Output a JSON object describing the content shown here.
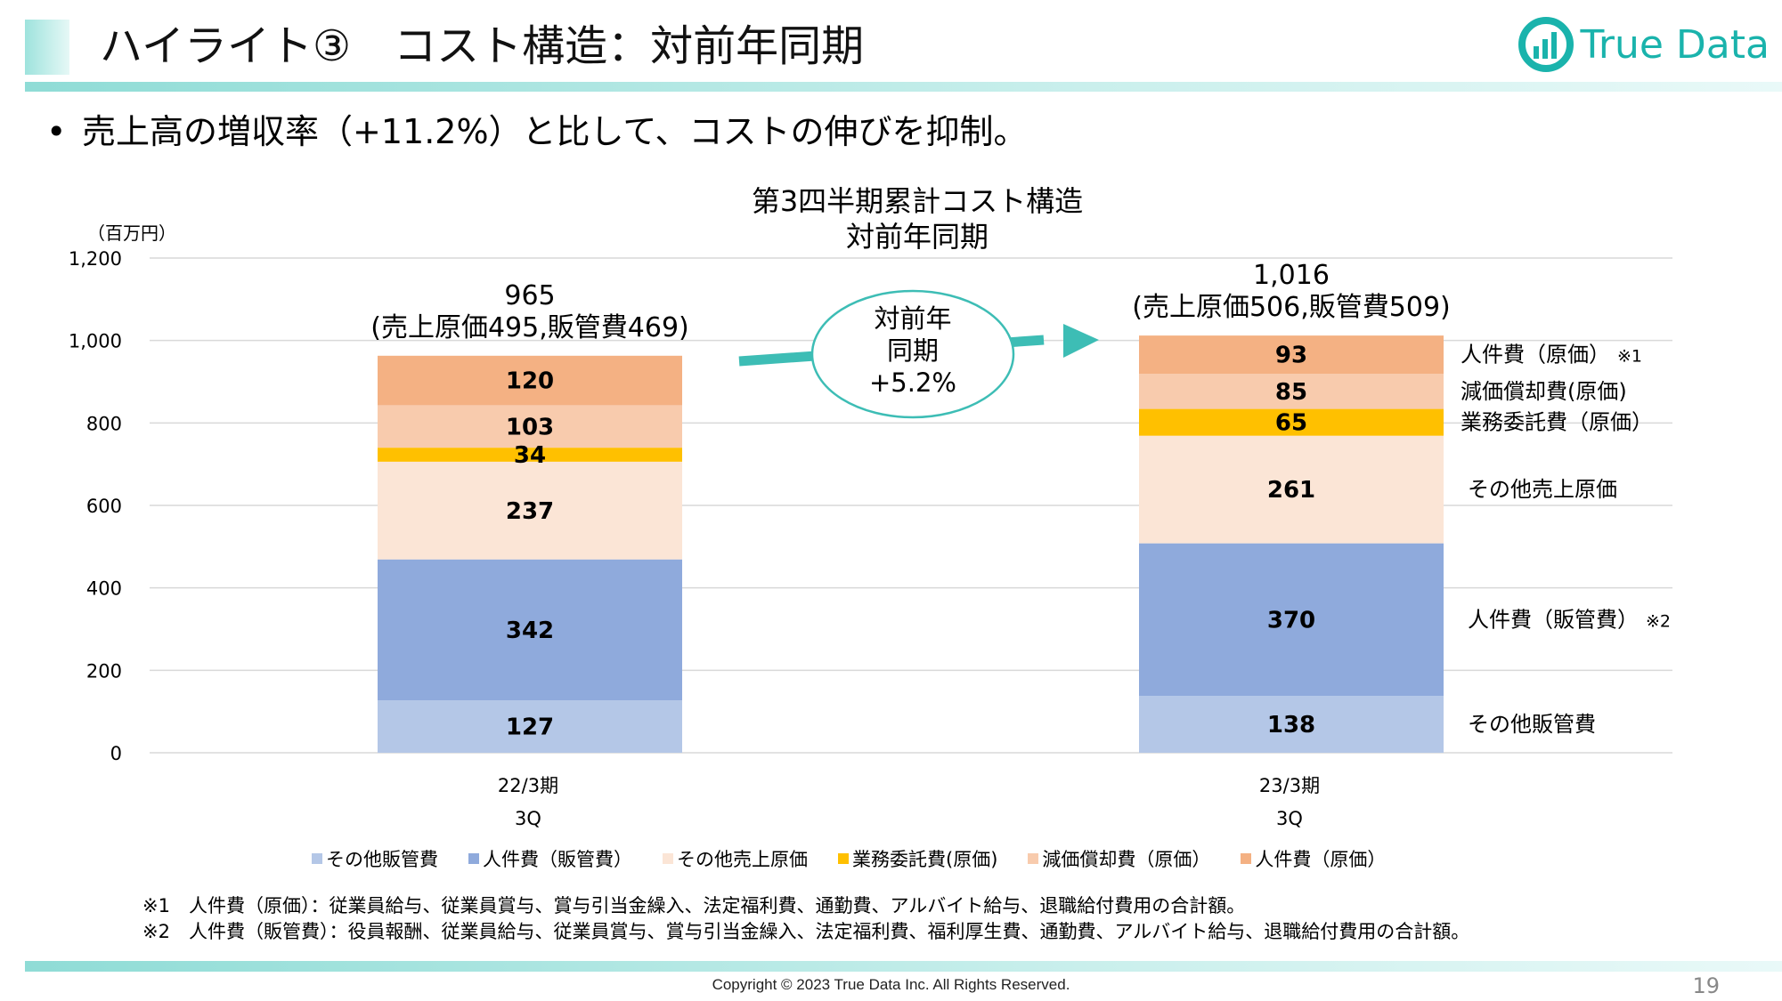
{
  "header": {
    "title": "ハイライト③　コスト構造：対前年同期",
    "logo_text": "True Data"
  },
  "bullet": "売上高の増収率（+11.2%）と比して、コストの伸びを抑制。",
  "chart_title_line1": "第3四半期累計コスト構造",
  "chart_title_line2": "対前年同期",
  "comparison_bubble": [
    "対前年",
    "同期",
    "+5.2%"
  ],
  "chart_data": {
    "type": "bar",
    "stacked": true,
    "unit": "（百万円）",
    "ylim": [
      0,
      1200
    ],
    "yticks": [
      0,
      200,
      400,
      600,
      800,
      1000,
      1200
    ],
    "ytick_labels": [
      "0",
      "200",
      "400",
      "600",
      "800",
      "1,000",
      "1,200"
    ],
    "grid": true,
    "legend_position": "bottom",
    "categories": [
      {
        "line1": "22/3期",
        "line2": "3Q"
      },
      {
        "line1": "23/3期",
        "line2": "3Q"
      }
    ],
    "totals": [
      {
        "value": "965",
        "breakdown": "(売上原価495,販管費469)"
      },
      {
        "value": "1,016",
        "breakdown": "(売上原価506,販管費509)"
      }
    ],
    "series": [
      {
        "name": "その他販管費",
        "values": [
          127,
          138
        ],
        "color": "#b4c7e7",
        "side_label": "その他販管費",
        "note": ""
      },
      {
        "name": "人件費（販管費）",
        "values": [
          342,
          370
        ],
        "color": "#8faadc",
        "side_label": "人件費（販管費）",
        "note": "※2"
      },
      {
        "name": "その他売上原価",
        "values": [
          237,
          261
        ],
        "color": "#fbe5d6",
        "side_label": "その他売上原価",
        "note": ""
      },
      {
        "name": "業務委託費(原価)",
        "values": [
          34,
          65
        ],
        "color": "#ffc000",
        "side_label": "業務委託費（原価）",
        "note": ""
      },
      {
        "name": "減価償却費（原価）",
        "values": [
          103,
          85
        ],
        "color": "#f8cbad",
        "side_label": "減価償却費(原価)",
        "note": ""
      },
      {
        "name": "人件費（原価）",
        "values": [
          120,
          93
        ],
        "color": "#f4b183",
        "side_label": "人件費（原価）",
        "note": "※1"
      }
    ]
  },
  "notes": [
    "※1　人件費（原価）：従業員給与、従業員賞与、賞与引当金繰入、法定福利費、通勤費、アルバイト給与、退職給付費用の合計額。",
    "※2　人件費（販管費）：役員報酬、従業員給与、従業員賞与、賞与引当金繰入、法定福利費、福利厚生費、通勤費、アルバイト給与、退職給付費用の合計額。"
  ],
  "footer": {
    "copyright": "Copyright © 2023 True Data Inc. All Rights Reserved.",
    "page_number": "19"
  },
  "colors": {
    "accent": "#1ab3ac",
    "arrow": "#3dbdb5",
    "grid": "#d9d9d9"
  }
}
